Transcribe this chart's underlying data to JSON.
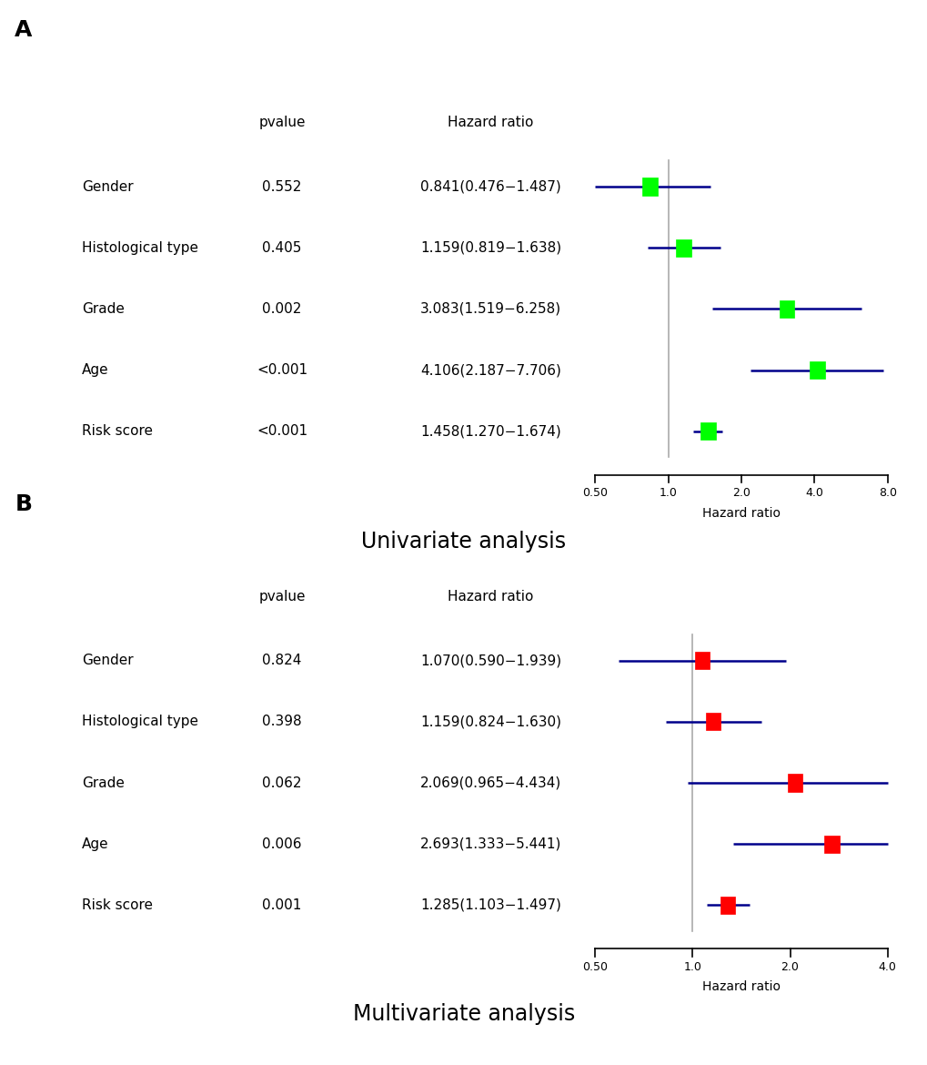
{
  "panel_A": {
    "title": "Univariate analysis",
    "panel_label": "A",
    "variables": [
      "Gender",
      "Histological type",
      "Grade",
      "Age",
      "Risk score"
    ],
    "pvalues": [
      "0.552",
      "0.405",
      "0.002",
      "<0.001",
      "<0.001"
    ],
    "hr_labels": [
      "0.841(0.476−1.487)",
      "1.159(0.819−1.638)",
      "3.083(1.519−6.258)",
      "4.106(2.187−7.706)",
      "1.458(1.270−1.674)"
    ],
    "hr": [
      0.841,
      1.159,
      3.083,
      4.106,
      1.458
    ],
    "ci_low": [
      0.476,
      0.819,
      1.519,
      2.187,
      1.27
    ],
    "ci_high": [
      1.487,
      1.638,
      6.258,
      7.706,
      1.674
    ],
    "box_color": "#00FF00",
    "line_color": "#00008B",
    "xmin": 0.5,
    "xmax": 8.0,
    "xticks": [
      0.5,
      1.0,
      2.0,
      4.0,
      8.0
    ],
    "xticklabels": [
      "0.50",
      "1.0",
      "2.0",
      "4.0",
      "8.0"
    ],
    "xlabel": "Hazard ratio",
    "ref_line": 1.0
  },
  "panel_B": {
    "title": "Multivariate analysis",
    "panel_label": "B",
    "variables": [
      "Gender",
      "Histological type",
      "Grade",
      "Age",
      "Risk score"
    ],
    "pvalues": [
      "0.824",
      "0.398",
      "0.062",
      "0.006",
      "0.001"
    ],
    "hr_labels": [
      "1.070(0.590−1.939)",
      "1.159(0.824−1.630)",
      "2.069(0.965−4.434)",
      "2.693(1.333−5.441)",
      "1.285(1.103−1.497)"
    ],
    "hr": [
      1.07,
      1.159,
      2.069,
      2.693,
      1.285
    ],
    "ci_low": [
      0.59,
      0.824,
      0.965,
      1.333,
      1.103
    ],
    "ci_high": [
      1.939,
      1.63,
      4.434,
      5.441,
      1.497
    ],
    "box_color": "#FF0000",
    "line_color": "#00008B",
    "xmin": 0.5,
    "xmax": 4.0,
    "xticks": [
      0.5,
      1.0,
      2.0,
      4.0
    ],
    "xticklabels": [
      "0.50",
      "1.0",
      "2.0",
      "4.0"
    ],
    "xlabel": "Hazard ratio",
    "ref_line": 1.0
  },
  "fig_width": 10.2,
  "fig_height": 11.7,
  "dpi": 100,
  "background_color": "#FFFFFF"
}
